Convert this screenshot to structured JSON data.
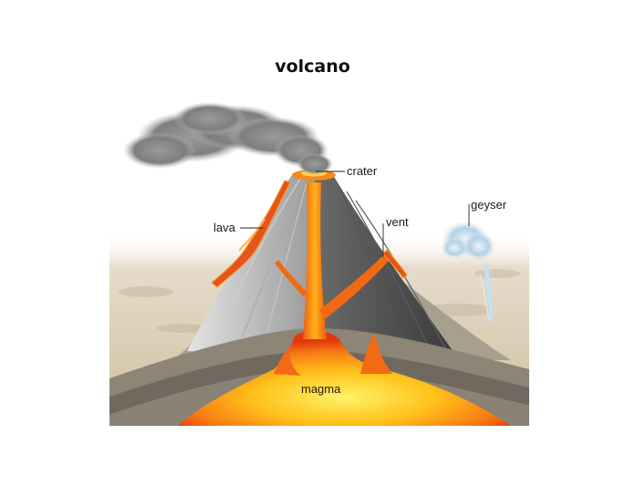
{
  "title": "volcano",
  "labels": {
    "crater": "crater",
    "lava": "lava",
    "vent": "vent",
    "geyser": "geyser",
    "magma": "magma"
  },
  "colors": {
    "magma_core": "#ffd21a",
    "magma_edge": "#f04a10",
    "cone_light": "#bdbdbd",
    "cone_dark": "#4a4a4a",
    "ground": "#d8c9ad",
    "smoke": "#8a8a8a",
    "geyser": "#b8d4e6"
  }
}
